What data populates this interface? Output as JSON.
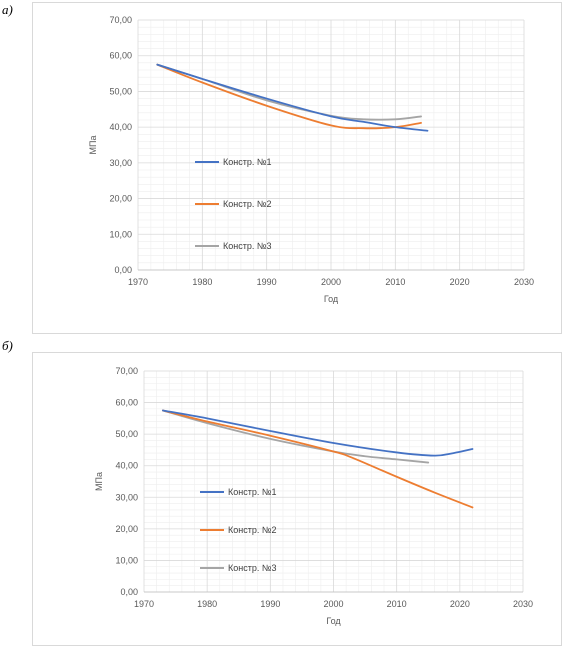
{
  "panels": [
    {
      "label": "а)"
    },
    {
      "label": "б)"
    }
  ],
  "chart_data": [
    {
      "type": "line",
      "title": "",
      "xlabel": "Год",
      "ylabel": "МПа",
      "xlim": [
        1970,
        2030
      ],
      "ylim": [
        0,
        70
      ],
      "x_ticks": [
        "1970",
        "1980",
        "1990",
        "2000",
        "2010",
        "2020",
        "2030"
      ],
      "y_ticks": [
        "0,00",
        "10,00",
        "20,00",
        "30,00",
        "40,00",
        "50,00",
        "60,00",
        "70,00"
      ],
      "grid": true,
      "legend_position": "left",
      "series": [
        {
          "name": "Констр. №1",
          "color": "#4472c4",
          "points": [
            [
              1973,
              57.5
            ],
            [
              1980,
              53.5
            ],
            [
              1990,
              48.0
            ],
            [
              2000,
              43.0
            ],
            [
              2005,
              41.5
            ],
            [
              2010,
              40.0
            ],
            [
              2015,
              39.0
            ]
          ]
        },
        {
          "name": "Констр. №2",
          "color": "#ed7d31",
          "points": [
            [
              1973,
              57.5
            ],
            [
              1980,
              52.5
            ],
            [
              1990,
              46.0
            ],
            [
              2000,
              40.5
            ],
            [
              2005,
              39.7
            ],
            [
              2010,
              40.0
            ],
            [
              2014,
              41.2
            ]
          ]
        },
        {
          "name": "Констр. №3",
          "color": "#a5a5a5",
          "points": [
            [
              1973,
              57.5
            ],
            [
              1980,
              53.5
            ],
            [
              1990,
              47.5
            ],
            [
              2000,
              43.2
            ],
            [
              2005,
              42.2
            ],
            [
              2010,
              42.2
            ],
            [
              2014,
              43.0
            ]
          ]
        }
      ]
    },
    {
      "type": "line",
      "title": "",
      "xlabel": "Год",
      "ylabel": "МПа",
      "xlim": [
        1970,
        2030
      ],
      "ylim": [
        0,
        70
      ],
      "x_ticks": [
        "1970",
        "1980",
        "1990",
        "2000",
        "2010",
        "2020",
        "2030"
      ],
      "y_ticks": [
        "0,00",
        "10,00",
        "20,00",
        "30,00",
        "40,00",
        "50,00",
        "60,00",
        "70,00"
      ],
      "grid": true,
      "legend_position": "left",
      "series": [
        {
          "name": "Констр. №1",
          "color": "#4472c4",
          "points": [
            [
              1973,
              57.5
            ],
            [
              1980,
              55.0
            ],
            [
              1990,
              51.0
            ],
            [
              2000,
              47.2
            ],
            [
              2010,
              44.2
            ],
            [
              2016,
              43.2
            ],
            [
              2019,
              44.0
            ],
            [
              2022,
              45.3
            ]
          ]
        },
        {
          "name": "Констр. №2",
          "color": "#ed7d31",
          "points": [
            [
              1973,
              57.5
            ],
            [
              1980,
              54.0
            ],
            [
              1990,
              49.5
            ],
            [
              2000,
              44.5
            ],
            [
              2003,
              42.5
            ],
            [
              2010,
              36.5
            ],
            [
              2016,
              31.5
            ],
            [
              2022,
              26.8
            ]
          ]
        },
        {
          "name": "Констр. №3",
          "color": "#a5a5a5",
          "points": [
            [
              1973,
              57.5
            ],
            [
              1980,
              53.5
            ],
            [
              1990,
              48.5
            ],
            [
              2000,
              44.5
            ],
            [
              2005,
              43.0
            ],
            [
              2010,
              42.0
            ],
            [
              2015,
              41.0
            ]
          ]
        }
      ]
    }
  ]
}
